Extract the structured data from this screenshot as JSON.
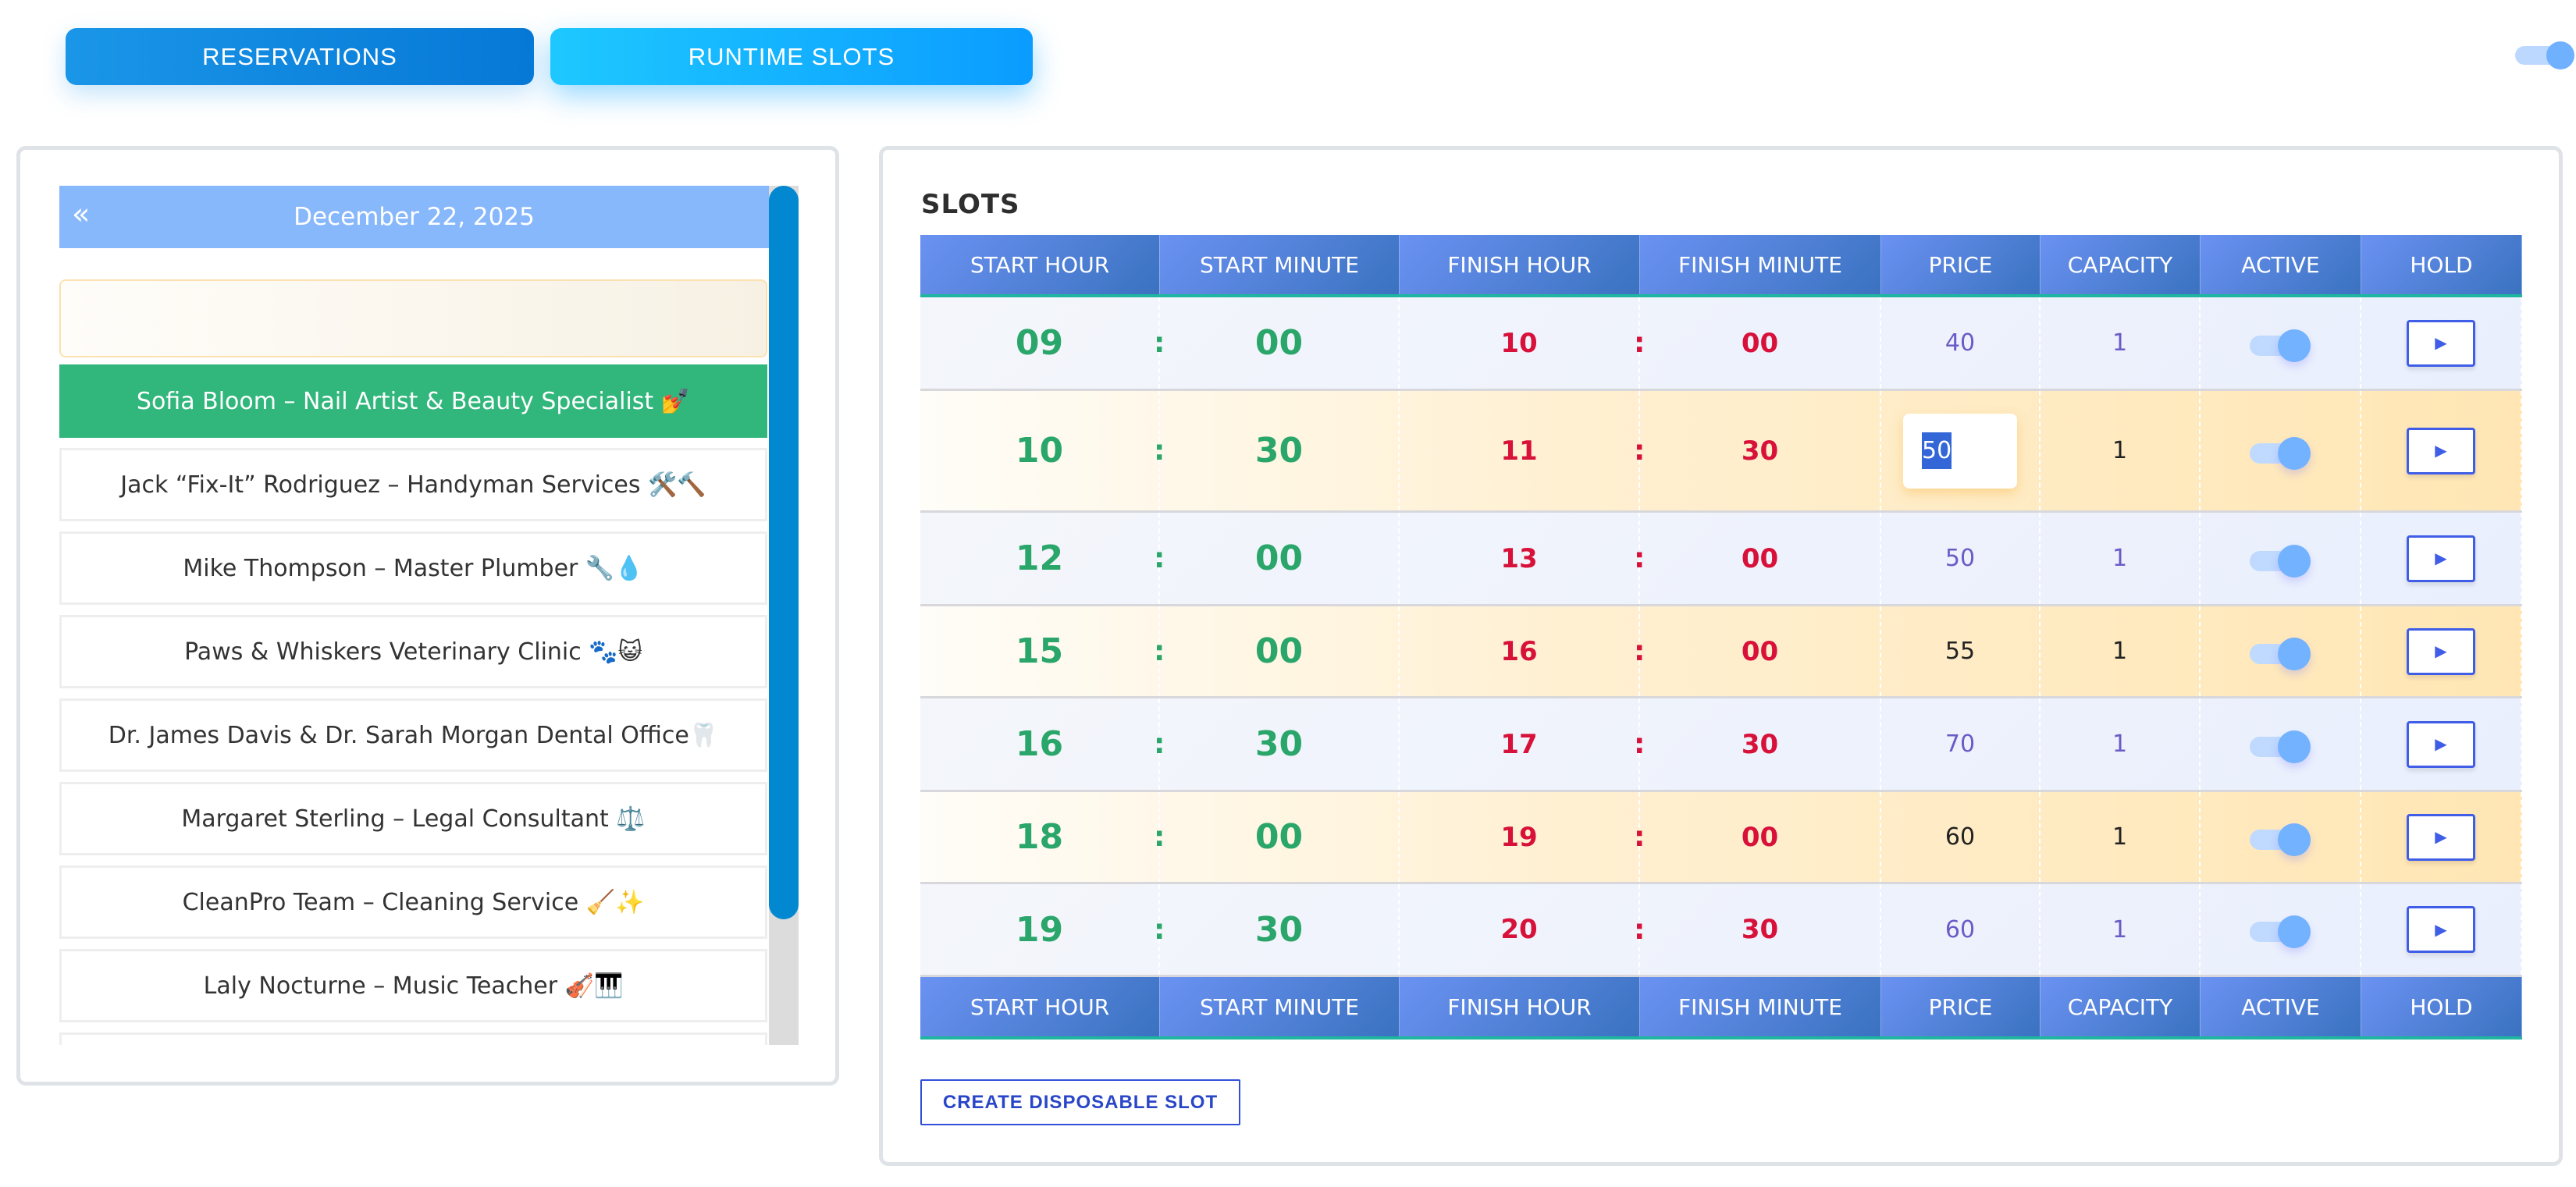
{
  "tabs": [
    {
      "label": "RESERVATIONS"
    },
    {
      "label": "RUNTIME SLOTS",
      "active": true
    }
  ],
  "top_toggle": {
    "on": true
  },
  "calendar": {
    "date": "December 22, 2025",
    "prev_icon": "«"
  },
  "providers": [
    {
      "label": "Sofia Bloom – Nail Artist & Beauty Specialist 💅",
      "selected": true
    },
    {
      "label": "Jack “Fix-It” Rodriguez – Handyman Services 🛠️🔨"
    },
    {
      "label": "Mike Thompson – Master Plumber 🔧💧"
    },
    {
      "label": "Paws & Whiskers Veterinary Clinic 🐾😺"
    },
    {
      "label": "Dr. James Davis & Dr. Sarah Morgan Dental Office🦷"
    },
    {
      "label": "Margaret Sterling – Legal Consultant ⚖️"
    },
    {
      "label": "CleanPro Team – Cleaning Service 🧹✨"
    },
    {
      "label": "Laly Nocturne – Music Teacher 🎻🎹"
    },
    {
      "label": ""
    }
  ],
  "slots": {
    "title": "SLOTS",
    "columns": [
      "START HOUR",
      "START MINUTE",
      "FINISH HOUR",
      "FINISH MINUTE",
      "PRICE",
      "CAPACITY",
      "ACTIVE",
      "HOLD"
    ],
    "colon": ":",
    "hold_icon": "▶",
    "rows": [
      {
        "sh": "09",
        "sm": "00",
        "fh": "10",
        "fm": "00",
        "price": "40",
        "capacity": "1",
        "active": true
      },
      {
        "sh": "10",
        "sm": "30",
        "fh": "11",
        "fm": "30",
        "price": "50",
        "capacity": "1",
        "active": true,
        "editing": true
      },
      {
        "sh": "12",
        "sm": "00",
        "fh": "13",
        "fm": "00",
        "price": "50",
        "capacity": "1",
        "active": true
      },
      {
        "sh": "15",
        "sm": "00",
        "fh": "16",
        "fm": "00",
        "price": "55",
        "capacity": "1",
        "active": true
      },
      {
        "sh": "16",
        "sm": "30",
        "fh": "17",
        "fm": "30",
        "price": "70",
        "capacity": "1",
        "active": true
      },
      {
        "sh": "18",
        "sm": "00",
        "fh": "19",
        "fm": "00",
        "price": "60",
        "capacity": "1",
        "active": true
      },
      {
        "sh": "19",
        "sm": "30",
        "fh": "20",
        "fm": "30",
        "price": "60",
        "capacity": "1",
        "active": true
      }
    ],
    "create_label": "CREATE DISPOSABLE SLOT"
  }
}
